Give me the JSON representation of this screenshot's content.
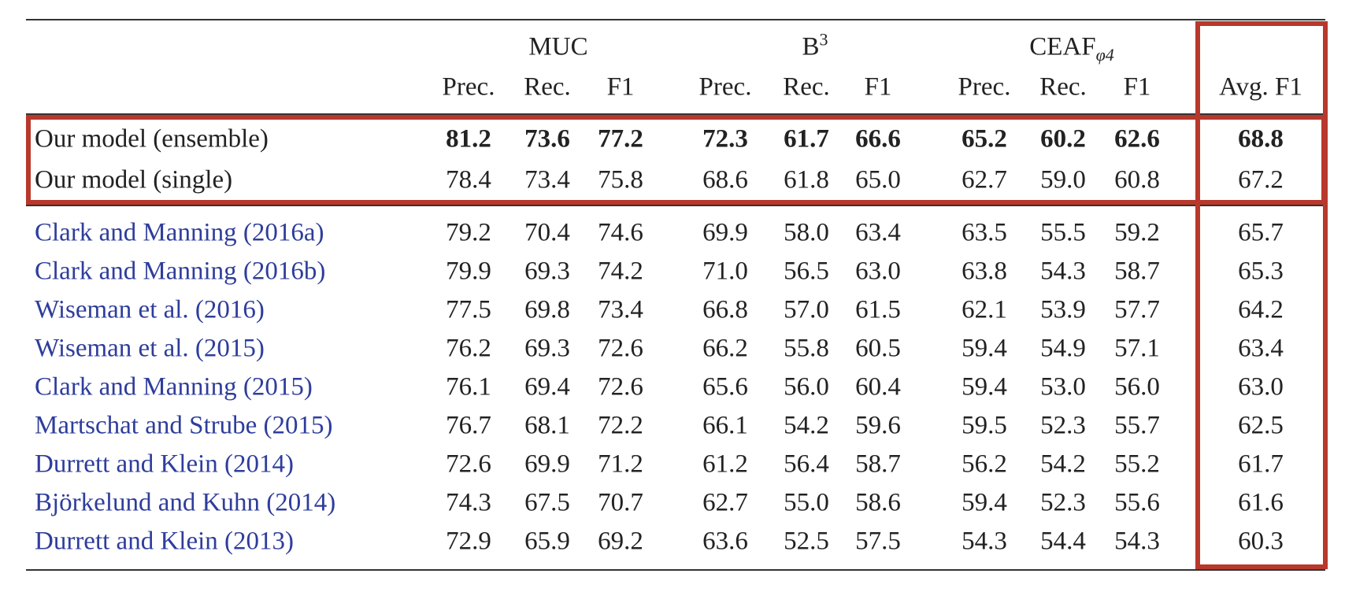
{
  "header": {
    "groups": [
      {
        "label": "MUC"
      },
      {
        "label": "B",
        "sup": "3"
      },
      {
        "label": "CEAF",
        "sub": "φ4"
      }
    ],
    "columns": [
      "Prec.",
      "Rec.",
      "F1",
      "Prec.",
      "Rec.",
      "F1",
      "Prec.",
      "Rec.",
      "F1",
      "Avg. F1"
    ]
  },
  "table": {
    "rows": [
      {
        "name": "Our model (ensemble)",
        "bold": true,
        "link": false,
        "cells": [
          "81.2",
          "73.6",
          "77.2",
          "72.3",
          "61.7",
          "66.6",
          "65.2",
          "60.2",
          "62.6",
          "68.8"
        ]
      },
      {
        "name": "Our model (single)",
        "bold": false,
        "link": false,
        "cells": [
          "78.4",
          "73.4",
          "75.8",
          "68.6",
          "61.8",
          "65.0",
          "62.7",
          "59.0",
          "60.8",
          "67.2"
        ]
      },
      {
        "name": "Clark and Manning (2016a)",
        "bold": false,
        "link": true,
        "cells": [
          "79.2",
          "70.4",
          "74.6",
          "69.9",
          "58.0",
          "63.4",
          "63.5",
          "55.5",
          "59.2",
          "65.7"
        ]
      },
      {
        "name": "Clark and Manning (2016b)",
        "bold": false,
        "link": true,
        "cells": [
          "79.9",
          "69.3",
          "74.2",
          "71.0",
          "56.5",
          "63.0",
          "63.8",
          "54.3",
          "58.7",
          "65.3"
        ]
      },
      {
        "name": "Wiseman et al. (2016)",
        "bold": false,
        "link": true,
        "cells": [
          "77.5",
          "69.8",
          "73.4",
          "66.8",
          "57.0",
          "61.5",
          "62.1",
          "53.9",
          "57.7",
          "64.2"
        ]
      },
      {
        "name": "Wiseman et al. (2015)",
        "bold": false,
        "link": true,
        "cells": [
          "76.2",
          "69.3",
          "72.6",
          "66.2",
          "55.8",
          "60.5",
          "59.4",
          "54.9",
          "57.1",
          "63.4"
        ]
      },
      {
        "name": "Clark and Manning (2015)",
        "bold": false,
        "link": true,
        "cells": [
          "76.1",
          "69.4",
          "72.6",
          "65.6",
          "56.0",
          "60.4",
          "59.4",
          "53.0",
          "56.0",
          "63.0"
        ]
      },
      {
        "name": "Martschat and Strube (2015)",
        "bold": false,
        "link": true,
        "cells": [
          "76.7",
          "68.1",
          "72.2",
          "66.1",
          "54.2",
          "59.6",
          "59.5",
          "52.3",
          "55.7",
          "62.5"
        ]
      },
      {
        "name": "Durrett and Klein (2014)",
        "bold": false,
        "link": true,
        "cells": [
          "72.6",
          "69.9",
          "71.2",
          "61.2",
          "56.4",
          "58.7",
          "56.2",
          "54.2",
          "55.2",
          "61.7"
        ]
      },
      {
        "name": "Björkelund and Kuhn (2014)",
        "bold": false,
        "link": true,
        "cells": [
          "74.3",
          "67.5",
          "70.7",
          "62.7",
          "55.0",
          "58.6",
          "59.4",
          "52.3",
          "55.6",
          "61.6"
        ]
      },
      {
        "name": "Durrett and Klein (2013)",
        "bold": false,
        "link": true,
        "cells": [
          "72.9",
          "65.9",
          "69.2",
          "63.6",
          "52.5",
          "57.5",
          "54.3",
          "54.4",
          "54.3",
          "60.3"
        ]
      }
    ]
  }
}
